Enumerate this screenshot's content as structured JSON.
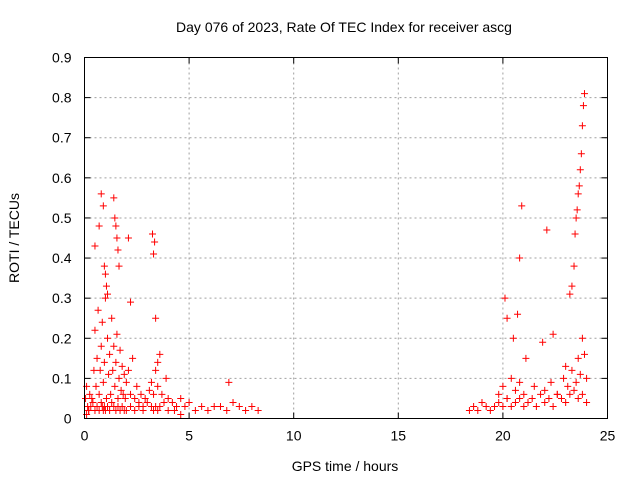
{
  "chart_data": {
    "type": "scatter",
    "title": "Day 076 of 2023, Rate Of TEC Index for receiver ascg",
    "xlabel": "GPS time / hours",
    "ylabel": "ROTI / TECUs",
    "xlim": [
      0,
      25
    ],
    "ylim": [
      0,
      0.9
    ],
    "x_ticks": [
      "0",
      "5",
      "10",
      "15",
      "20",
      "25"
    ],
    "y_ticks": [
      "0",
      "0.1",
      "0.2",
      "0.3",
      "0.4",
      "0.5",
      "0.6",
      "0.7",
      "0.8",
      "0.9"
    ],
    "grid": true,
    "marker": "+",
    "color": "#ff0000",
    "series": [
      {
        "x": [
          0.05,
          0.1,
          0.15,
          0.2,
          0.25,
          0.3,
          0.35,
          0.4,
          0.45,
          0.5,
          0.55,
          0.6,
          0.65,
          0.7,
          0.75,
          0.8,
          0.85,
          0.9,
          0.95,
          1.0,
          1.05,
          1.1,
          1.15,
          1.2,
          1.25,
          1.3,
          1.35,
          1.4,
          1.45,
          1.5,
          1.55,
          1.6,
          1.65,
          1.7,
          1.75,
          1.8,
          1.85,
          1.9,
          1.95,
          2.0,
          2.1,
          2.2,
          2.3,
          2.4,
          2.5,
          2.6,
          2.7,
          2.8,
          2.9,
          3.0,
          3.1,
          3.2,
          3.3,
          3.4,
          3.5,
          3.6,
          3.7,
          3.8,
          3.9,
          4.0,
          4.2,
          4.4,
          4.6,
          4.8,
          5.0,
          5.3,
          5.6,
          5.9,
          6.2,
          6.5,
          6.8,
          7.1,
          7.4,
          7.7,
          8.0,
          8.3,
          0.1,
          0.2,
          0.5,
          0.6,
          0.7,
          0.8,
          0.85,
          0.9,
          0.95,
          1.0,
          1.1,
          1.2,
          1.3,
          1.4,
          1.5,
          1.6,
          1.7,
          1.8,
          1.9,
          2.0,
          2.2,
          2.4,
          2.6,
          2.8,
          3.2,
          3.3,
          3.4,
          3.5,
          3.6,
          4.0,
          4.3,
          4.6,
          0.5,
          0.7,
          0.8,
          0.9,
          0.95,
          1.0,
          1.05,
          1.1,
          1.4,
          1.45,
          1.5,
          1.55,
          1.6,
          1.65,
          2.1,
          2.2,
          3.25,
          3.3,
          3.35,
          3.4,
          3.5,
          6.9,
          18.4,
          18.6,
          18.8,
          19.0,
          19.2,
          19.4,
          19.6,
          19.8,
          20.0,
          20.2,
          20.4,
          20.6,
          20.8,
          21.0,
          21.2,
          21.4,
          21.6,
          21.8,
          22.0,
          22.2,
          22.4,
          22.6,
          22.8,
          23.0,
          23.2,
          23.4,
          23.6,
          23.8,
          24.0,
          19.8,
          20.0,
          20.2,
          20.4,
          20.6,
          20.8,
          21.0,
          21.5,
          22.0,
          22.3,
          22.6,
          22.9,
          23.1,
          23.3,
          23.5,
          23.6,
          23.7,
          23.8,
          23.9,
          24.0,
          20.1,
          20.2,
          20.5,
          20.7,
          20.8,
          20.9,
          21.1,
          21.9,
          22.1,
          22.4,
          23.0,
          23.2,
          23.3,
          23.4,
          23.45,
          23.5,
          23.55,
          23.6,
          23.65,
          23.7,
          23.75,
          23.8,
          23.85,
          23.9
        ],
        "y": [
          0.05,
          0.08,
          0.03,
          0.02,
          0.06,
          0.03,
          0.05,
          0.04,
          0.12,
          0.22,
          0.08,
          0.15,
          0.27,
          0.06,
          0.12,
          0.18,
          0.24,
          0.09,
          0.14,
          0.3,
          0.05,
          0.2,
          0.11,
          0.16,
          0.06,
          0.25,
          0.12,
          0.18,
          0.08,
          0.14,
          0.21,
          0.05,
          0.1,
          0.17,
          0.07,
          0.13,
          0.06,
          0.11,
          0.05,
          0.09,
          0.12,
          0.06,
          0.15,
          0.05,
          0.08,
          0.04,
          0.06,
          0.03,
          0.05,
          0.04,
          0.07,
          0.09,
          0.06,
          0.12,
          0.08,
          0.16,
          0.06,
          0.04,
          0.1,
          0.05,
          0.04,
          0.03,
          0.05,
          0.03,
          0.04,
          0.02,
          0.03,
          0.02,
          0.03,
          0.03,
          0.02,
          0.04,
          0.03,
          0.02,
          0.03,
          0.02,
          0.01,
          0.02,
          0.02,
          0.03,
          0.02,
          0.04,
          0.03,
          0.02,
          0.03,
          0.02,
          0.03,
          0.02,
          0.04,
          0.03,
          0.02,
          0.03,
          0.02,
          0.03,
          0.02,
          0.02,
          0.03,
          0.02,
          0.03,
          0.02,
          0.03,
          0.02,
          0.03,
          0.02,
          0.03,
          0.02,
          0.02,
          0.01,
          0.43,
          0.48,
          0.56,
          0.53,
          0.38,
          0.36,
          0.33,
          0.31,
          0.55,
          0.5,
          0.48,
          0.45,
          0.42,
          0.38,
          0.45,
          0.29,
          0.46,
          0.41,
          0.44,
          0.25,
          0.14,
          0.09,
          0.02,
          0.03,
          0.02,
          0.04,
          0.03,
          0.02,
          0.03,
          0.04,
          0.03,
          0.05,
          0.03,
          0.04,
          0.05,
          0.03,
          0.04,
          0.05,
          0.03,
          0.06,
          0.04,
          0.05,
          0.03,
          0.06,
          0.05,
          0.04,
          0.06,
          0.07,
          0.05,
          0.06,
          0.04,
          0.06,
          0.08,
          0.05,
          0.1,
          0.07,
          0.09,
          0.06,
          0.08,
          0.07,
          0.09,
          0.06,
          0.1,
          0.08,
          0.12,
          0.09,
          0.15,
          0.11,
          0.2,
          0.16,
          0.1,
          0.3,
          0.25,
          0.2,
          0.26,
          0.4,
          0.53,
          0.15,
          0.19,
          0.47,
          0.21,
          0.13,
          0.31,
          0.33,
          0.38,
          0.46,
          0.5,
          0.52,
          0.56,
          0.58,
          0.62,
          0.66,
          0.73,
          0.78,
          0.81
        ]
      }
    ]
  }
}
